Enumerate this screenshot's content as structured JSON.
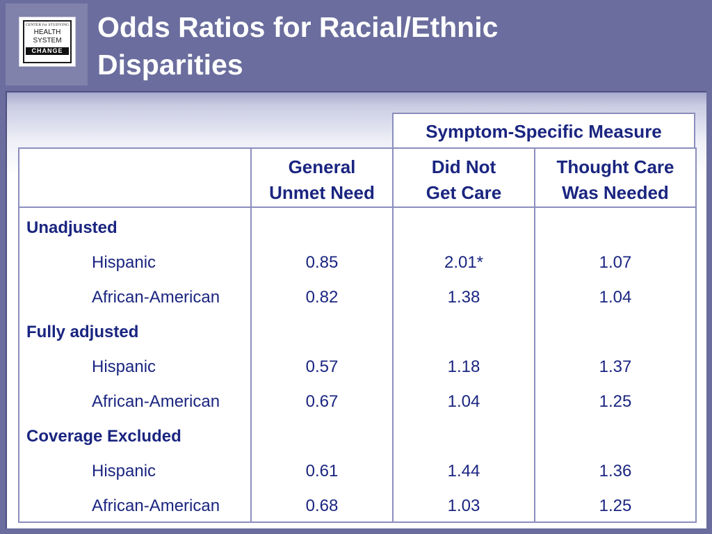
{
  "title_line1": "Odds Ratios for Racial/Ethnic",
  "title_line2": "Disparities",
  "logo": {
    "line1": "CENTER for STUDYING",
    "line2": "HEALTH",
    "line3": "SYSTEM",
    "line4": "CHANGE"
  },
  "table": {
    "super_header": "Symptom-Specific Measure",
    "columns": [
      {
        "line1": "General",
        "line2": "Unmet Need"
      },
      {
        "line1": "Did Not",
        "line2": "Get Care"
      },
      {
        "line1": "Thought Care",
        "line2": "Was Needed"
      }
    ],
    "groups": [
      {
        "label": "Unadjusted",
        "rows": [
          {
            "label": "Hispanic",
            "values": [
              "0.85",
              "2.01*",
              "1.07"
            ]
          },
          {
            "label": "African-American",
            "values": [
              "0.82",
              "1.38",
              "1.04"
            ]
          }
        ]
      },
      {
        "label": "Fully adjusted",
        "rows": [
          {
            "label": "Hispanic",
            "values": [
              "0.57",
              "1.18",
              "1.37"
            ]
          },
          {
            "label": "African-American",
            "values": [
              "0.67",
              "1.04",
              "1.25"
            ]
          }
        ]
      },
      {
        "label": "Coverage Excluded",
        "rows": [
          {
            "label": "Hispanic",
            "values": [
              "0.61",
              "1.44",
              "1.36"
            ]
          },
          {
            "label": "African-American",
            "values": [
              "0.68",
              "1.03",
              "1.25"
            ]
          }
        ]
      }
    ]
  }
}
